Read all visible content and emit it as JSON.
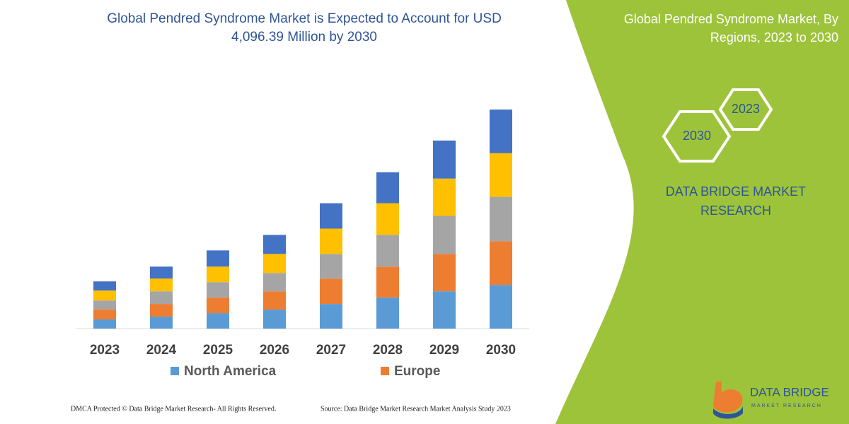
{
  "chart_data": {
    "type": "stacked_bar",
    "title": "Global Pendred Syndrome Market is Expected to Account for USD 4,096.39 Million by 2030",
    "categories": [
      "2023",
      "2024",
      "2025",
      "2026",
      "2027",
      "2028",
      "2029",
      "2030"
    ],
    "series": [
      {
        "name": "North America",
        "color": "#5b9bd5",
        "values": [
          13,
          17,
          22,
          27,
          35,
          44,
          53,
          62
        ]
      },
      {
        "name": "Europe",
        "color": "#ed7d31",
        "values": [
          14,
          18,
          22,
          26,
          36,
          44,
          53,
          62
        ]
      },
      {
        "color": "#a5a5a5",
        "values": [
          13,
          18,
          22,
          26,
          35,
          45,
          54,
          63
        ]
      },
      {
        "color": "#ffc000",
        "values": [
          14,
          18,
          22,
          27,
          36,
          45,
          53,
          62
        ]
      },
      {
        "color": "#4472c4",
        "values": [
          13,
          17,
          23,
          27,
          36,
          44,
          54,
          62
        ]
      }
    ]
  },
  "side_panel": {
    "title": "Global Pendred Syndrome Market, By Regions, 2023 to 2030",
    "hex_labels": [
      "2023",
      "2030"
    ],
    "brand": "DATA BRIDGE MARKET RESEARCH"
  },
  "logo": {
    "name": "DATA BRIDGE",
    "tagline": "MARKET RESEARCH"
  },
  "footer": {
    "left": "DMCA Protected © Data Bridge Market Research-  All Rights Reserved.",
    "right": "Source: Data Bridge Market Research  Market Analysis Study 2023"
  }
}
